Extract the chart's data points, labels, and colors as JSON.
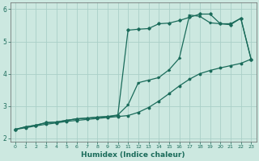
{
  "xlabel": "Humidex (Indice chaleur)",
  "ylabel": "",
  "xlim": [
    -0.5,
    23.5
  ],
  "ylim": [
    1.9,
    6.2
  ],
  "yticks": [
    2,
    3,
    4,
    5,
    6
  ],
  "xticks": [
    0,
    1,
    2,
    3,
    4,
    5,
    6,
    7,
    8,
    9,
    10,
    11,
    12,
    13,
    14,
    15,
    16,
    17,
    18,
    19,
    20,
    21,
    22,
    23
  ],
  "bg_color": "#cce8e0",
  "grid_color": "#aacfc8",
  "line_color": "#1a6b5a",
  "line1_x": [
    0,
    1,
    2,
    3,
    4,
    5,
    6,
    7,
    8,
    9,
    10,
    11,
    12,
    13,
    14,
    15,
    16,
    17,
    18,
    19,
    20,
    21,
    22,
    23
  ],
  "line1_y": [
    2.27,
    2.32,
    2.38,
    2.43,
    2.47,
    2.52,
    2.55,
    2.58,
    2.61,
    2.64,
    2.67,
    2.7,
    2.8,
    2.95,
    3.15,
    3.38,
    3.62,
    3.83,
    4.0,
    4.1,
    4.18,
    4.25,
    4.32,
    4.45
  ],
  "line2_x": [
    0,
    1,
    2,
    3,
    4,
    5,
    6,
    7,
    8,
    9,
    10,
    11,
    12,
    13,
    14,
    15,
    16,
    17,
    18,
    19,
    20,
    21,
    22,
    23
  ],
  "line2_y": [
    2.27,
    2.35,
    2.4,
    2.48,
    2.5,
    2.55,
    2.6,
    2.62,
    2.65,
    2.67,
    2.7,
    5.35,
    5.38,
    5.4,
    5.55,
    5.57,
    5.65,
    5.75,
    5.85,
    5.85,
    5.55,
    5.52,
    5.72,
    4.45
  ],
  "line3_x": [
    0,
    1,
    2,
    3,
    4,
    5,
    6,
    7,
    8,
    9,
    10,
    11,
    12,
    13,
    14,
    15,
    16,
    17,
    18,
    19,
    20,
    21,
    22,
    23
  ],
  "line3_y": [
    2.27,
    2.35,
    2.4,
    2.48,
    2.5,
    2.55,
    2.6,
    2.62,
    2.65,
    2.67,
    2.72,
    3.03,
    3.72,
    3.8,
    3.88,
    4.12,
    4.48,
    5.82,
    5.78,
    5.58,
    5.55,
    5.55,
    5.72,
    4.45
  ]
}
